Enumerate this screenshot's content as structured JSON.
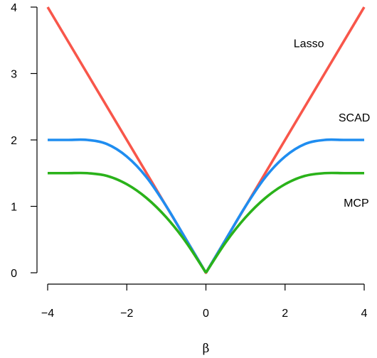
{
  "chart_data": {
    "type": "line",
    "title": "",
    "xlabel": "β",
    "ylabel": "",
    "xlim": [
      -4,
      4
    ],
    "ylim": [
      0,
      4
    ],
    "grid": false,
    "x_ticks": [
      -4,
      -2,
      0,
      2,
      4
    ],
    "x_tick_labels": [
      "−4",
      "−2",
      "0",
      "2",
      "4"
    ],
    "y_ticks": [
      0,
      1,
      2,
      3,
      4
    ],
    "y_tick_labels": [
      "0",
      "1",
      "2",
      "3",
      "4"
    ],
    "series": [
      {
        "name": "Lasso",
        "color": "#f8564a",
        "x": [
          -4,
          -3,
          -2,
          -1,
          0,
          1,
          2,
          3,
          4
        ],
        "y": [
          4,
          3,
          2,
          1,
          0,
          1,
          2,
          3,
          4
        ]
      },
      {
        "name": "SCAD",
        "color": "#1f8df0",
        "x": [
          -4,
          -3.5,
          -3,
          -2.5,
          -2,
          -1.5,
          -1,
          -0.5,
          0,
          0.5,
          1,
          1.5,
          2,
          2.5,
          3,
          3.5,
          4
        ],
        "y": [
          2,
          2,
          2,
          1.9375,
          1.75,
          1.4375,
          1,
          0.5,
          0,
          0.5,
          1,
          1.4375,
          1.75,
          1.9375,
          2,
          2,
          2
        ]
      },
      {
        "name": "MCP",
        "color": "#2ab21a",
        "x": [
          -4,
          -3.5,
          -3,
          -2.5,
          -2,
          -1.5,
          -1,
          -0.5,
          0,
          0.5,
          1,
          1.5,
          2,
          2.5,
          3,
          3.5,
          4
        ],
        "y": [
          1.5,
          1.5,
          1.5,
          1.4583,
          1.3333,
          1.125,
          0.8333,
          0.4583,
          0,
          0.4583,
          0.8333,
          1.125,
          1.3333,
          1.4583,
          1.5,
          1.5,
          1.5
        ]
      }
    ],
    "annotations": [
      {
        "text": "Lasso",
        "x": 2.6,
        "y": 3.45
      },
      {
        "text": "SCAD",
        "x": 3.75,
        "y": 2.33
      },
      {
        "text": "MCP",
        "x": 3.8,
        "y": 1.05
      }
    ]
  }
}
